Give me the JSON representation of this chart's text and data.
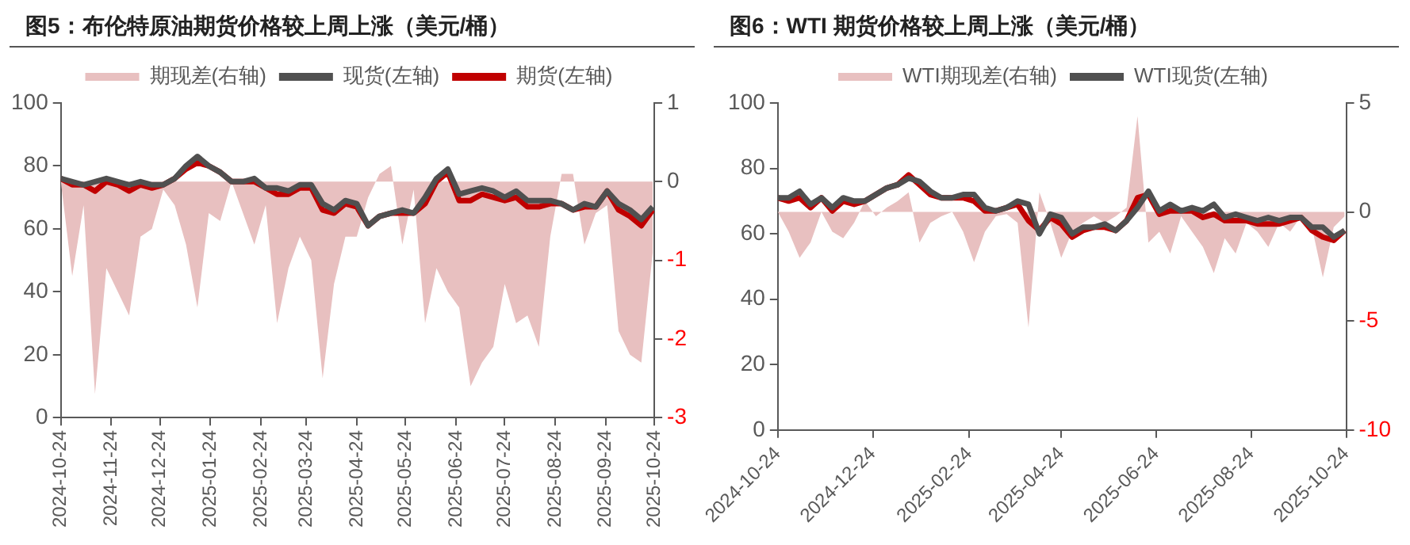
{
  "chart_data": [
    {
      "type": "line",
      "title": "图5：布伦特原油期货价格较上周上涨（美元/桶）",
      "legend": "top",
      "grid": false,
      "x": [
        "2024-10-24",
        "2024-10-31",
        "2024-11-07",
        "2024-11-14",
        "2024-11-21",
        "2024-11-28",
        "2024-12-05",
        "2024-12-12",
        "2024-12-19",
        "2024-12-26",
        "2025-01-02",
        "2025-01-09",
        "2025-01-16",
        "2025-01-23",
        "2025-01-30",
        "2025-02-06",
        "2025-02-13",
        "2025-02-20",
        "2025-02-27",
        "2025-03-06",
        "2025-03-13",
        "2025-03-20",
        "2025-03-27",
        "2025-04-03",
        "2025-04-10",
        "2025-04-17",
        "2025-04-24",
        "2025-05-01",
        "2025-05-08",
        "2025-05-15",
        "2025-05-22",
        "2025-05-29",
        "2025-06-05",
        "2025-06-12",
        "2025-06-19",
        "2025-06-26",
        "2025-07-03",
        "2025-07-10",
        "2025-07-17",
        "2025-07-24",
        "2025-07-31",
        "2025-08-07",
        "2025-08-14",
        "2025-08-21",
        "2025-08-28",
        "2025-09-04",
        "2025-09-11",
        "2025-09-18",
        "2025-09-25",
        "2025-10-02",
        "2025-10-09",
        "2025-10-16",
        "2025-10-23"
      ],
      "xlim": [
        "2024-10-24",
        "2025-10-24"
      ],
      "xticks": [
        "2024-10-24",
        "2024-11-24",
        "2024-12-24",
        "2025-01-24",
        "2025-02-24",
        "2025-03-24",
        "2025-04-24",
        "2025-05-24",
        "2025-06-24",
        "2025-07-24",
        "2025-08-24",
        "2025-09-24",
        "2025-10-24"
      ],
      "ylim": [
        0,
        100
      ],
      "yticks": [
        0,
        20,
        40,
        60,
        80,
        100
      ],
      "y2lim": [
        -3,
        1
      ],
      "y2ticks": [
        -3,
        -2,
        -1,
        0,
        1
      ],
      "series": [
        {
          "name": "期现差(右轴)",
          "type": "area",
          "axis": "y2",
          "color": "#e8c0c0",
          "values": [
            0,
            -1.2,
            -0.3,
            -2.7,
            -1.1,
            -1.4,
            -1.7,
            -0.7,
            -0.6,
            -0.1,
            -0.3,
            -0.8,
            -1.6,
            -0.4,
            -0.5,
            0,
            -0.4,
            -0.8,
            -0.3,
            -1.8,
            -1.1,
            -0.7,
            -1.0,
            -2.5,
            -1.3,
            -0.7,
            -0.7,
            -0.2,
            0.1,
            0.2,
            -0.8,
            -0.1,
            -1.8,
            -1.1,
            -1.4,
            -1.6,
            -2.6,
            -2.3,
            -2.1,
            -1.3,
            -1.8,
            -1.7,
            -2.1,
            -0.7,
            0.1,
            0.1,
            -0.8,
            -0.4,
            -0.3,
            -1.9,
            -2.2,
            -2.3,
            -0.9
          ]
        },
        {
          "name": "现货(左轴)",
          "color": "#505050",
          "values": [
            76,
            75,
            74,
            75,
            76,
            75,
            74,
            75,
            74,
            74,
            76,
            80,
            83,
            80,
            78,
            75,
            75,
            76,
            73,
            73,
            72,
            74,
            74,
            68,
            66,
            69,
            68,
            61,
            64,
            65,
            66,
            65,
            70,
            76,
            79,
            71,
            72,
            73,
            72,
            70,
            72,
            69,
            69,
            69,
            68,
            66,
            68,
            67,
            72,
            68,
            66,
            63,
            67
          ]
        },
        {
          "name": "期货(左轴)",
          "color": "#c00000",
          "values": [
            76,
            74,
            74,
            72,
            75,
            74,
            72,
            74,
            73,
            74,
            76,
            79,
            81,
            80,
            78,
            75,
            75,
            75,
            73,
            71,
            71,
            73,
            73,
            66,
            65,
            68,
            67,
            61,
            64,
            65,
            65,
            65,
            68,
            75,
            78,
            69,
            69,
            71,
            70,
            69,
            70,
            67,
            67,
            68,
            68,
            66,
            67,
            67,
            72,
            66,
            64,
            61,
            66
          ]
        }
      ]
    },
    {
      "type": "line",
      "title": "图6：WTI 期货价格较上周上涨（美元/桶）",
      "legend": "top",
      "grid": false,
      "x": [
        "2024-10-24",
        "2024-10-31",
        "2024-11-07",
        "2024-11-14",
        "2024-11-21",
        "2024-11-28",
        "2024-12-05",
        "2024-12-12",
        "2024-12-19",
        "2024-12-26",
        "2025-01-02",
        "2025-01-09",
        "2025-01-16",
        "2025-01-23",
        "2025-01-30",
        "2025-02-06",
        "2025-02-13",
        "2025-02-20",
        "2025-02-27",
        "2025-03-06",
        "2025-03-13",
        "2025-03-20",
        "2025-03-27",
        "2025-04-03",
        "2025-04-10",
        "2025-04-17",
        "2025-04-24",
        "2025-05-01",
        "2025-05-08",
        "2025-05-15",
        "2025-05-22",
        "2025-05-29",
        "2025-06-05",
        "2025-06-12",
        "2025-06-19",
        "2025-06-26",
        "2025-07-03",
        "2025-07-10",
        "2025-07-17",
        "2025-07-24",
        "2025-07-31",
        "2025-08-07",
        "2025-08-14",
        "2025-08-21",
        "2025-08-28",
        "2025-09-04",
        "2025-09-11",
        "2025-09-18",
        "2025-09-25",
        "2025-10-02",
        "2025-10-09",
        "2025-10-16",
        "2025-10-23"
      ],
      "xlim": [
        "2024-10-24",
        "2025-10-24"
      ],
      "xticks": [
        "2024-10-24",
        "2024-12-24",
        "2025-02-24",
        "2025-04-24",
        "2025-06-24",
        "2025-08-24",
        "2025-10-24"
      ],
      "ylim": [
        0,
        100
      ],
      "yticks": [
        0,
        20,
        40,
        60,
        80,
        100
      ],
      "y2lim": [
        -10,
        5
      ],
      "y2ticks": [
        -10,
        -5,
        0,
        5
      ],
      "series": [
        {
          "name": "WTI期现差(右轴)",
          "type": "area",
          "axis": "y2",
          "color": "#e8c0c0",
          "values": [
            0,
            -0.9,
            -2.1,
            -1.4,
            0,
            -0.9,
            -1.2,
            -0.5,
            0.5,
            -0.2,
            0.2,
            0.5,
            0.9,
            -1.4,
            -0.5,
            -0.2,
            0,
            -0.9,
            -2.3,
            -0.9,
            -0.2,
            -0.1,
            -0.5,
            -5.3,
            0.9,
            -0.5,
            -2.1,
            -0.9,
            -0.5,
            -0.2,
            -0.5,
            -0.2,
            0.2,
            4.4,
            -1.4,
            -0.9,
            -1.9,
            -0.2,
            -0.9,
            -1.6,
            -2.8,
            -1.2,
            -1.9,
            -0.5,
            -0.9,
            -1.6,
            -0.5,
            -0.9,
            -0.2,
            -0.7,
            -3.0,
            -0.7,
            -0.2
          ]
        },
        {
          "name": "WTI现货(左轴)",
          "color": "#505050",
          "values": [
            71,
            71,
            73,
            69,
            71,
            68,
            71,
            70,
            70,
            72,
            74,
            75,
            77,
            76,
            73,
            71,
            71,
            72,
            72,
            68,
            67,
            68,
            70,
            69,
            60,
            66,
            65,
            60,
            62,
            62,
            63,
            61,
            64,
            68,
            73,
            67,
            69,
            67,
            68,
            67,
            69,
            65,
            66,
            65,
            64,
            65,
            64,
            65,
            65,
            62,
            62,
            59,
            61
          ]
        },
        {
          "color": "#c00000",
          "values": [
            71,
            70,
            71,
            68,
            71,
            67,
            70,
            69,
            70,
            72,
            74,
            75,
            78,
            75,
            72,
            71,
            71,
            71,
            70,
            67,
            67,
            68,
            69,
            64,
            61,
            65,
            63,
            59,
            61,
            62,
            62,
            61,
            64,
            71,
            72,
            66,
            67,
            67,
            67,
            65,
            66,
            64,
            64,
            64,
            63,
            63,
            63,
            64,
            65,
            61,
            59,
            58,
            61
          ]
        }
      ]
    }
  ]
}
